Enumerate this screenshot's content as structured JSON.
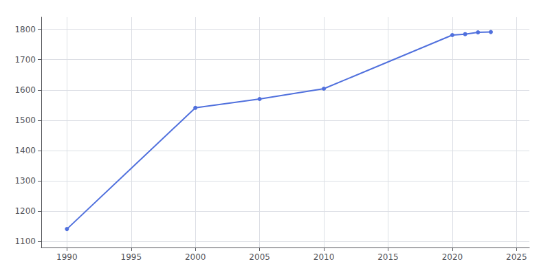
{
  "chart_data": {
    "type": "line",
    "x": [
      1990,
      2000,
      2005,
      2010,
      2020,
      2021,
      2022,
      2023
    ],
    "values": [
      1141,
      1541,
      1570,
      1604,
      1781,
      1784,
      1790,
      1791
    ],
    "marker": "circle",
    "xlim": [
      1988,
      2026
    ],
    "xticks": [
      1990,
      1995,
      2000,
      2005,
      2010,
      2015,
      2020,
      2025
    ],
    "ylim": [
      1080,
      1840
    ],
    "yticks": [
      1100,
      1200,
      1300,
      1400,
      1500,
      1600,
      1700,
      1800
    ],
    "grid": true
  }
}
